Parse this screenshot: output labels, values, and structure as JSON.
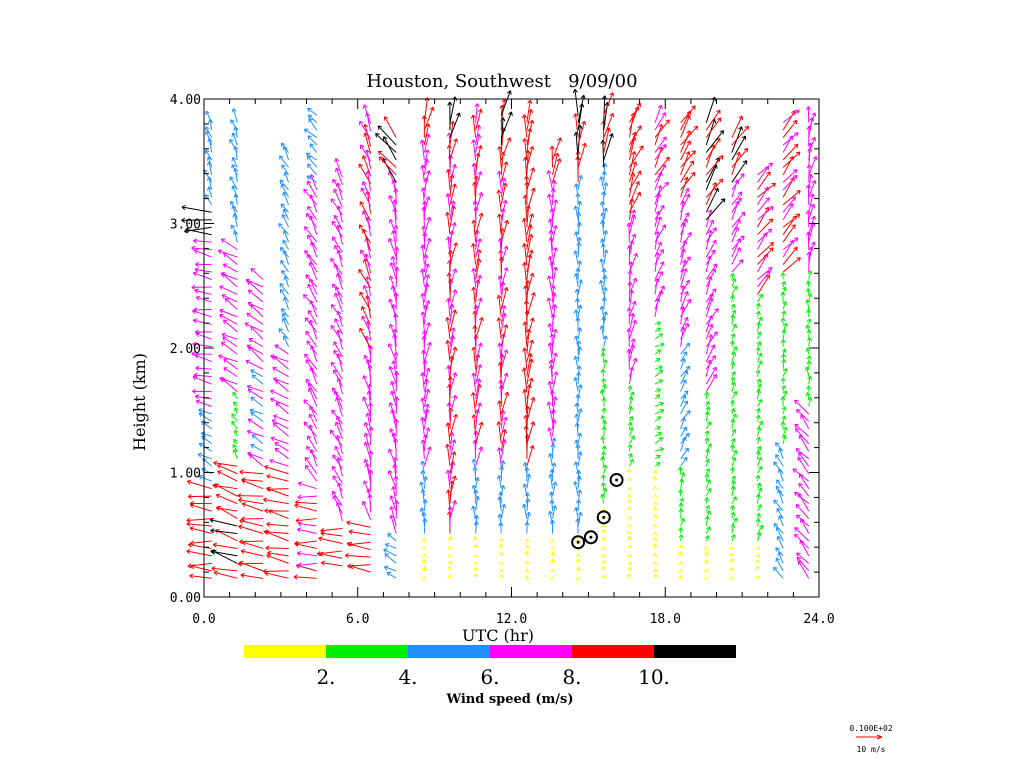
{
  "chart_data": {
    "type": "wind-profiler-barbs",
    "title": "Houston, Southwest   9/09/00",
    "xlabel": "UTC (hr)",
    "ylabel": "Height (km)",
    "xlim": [
      0,
      24
    ],
    "ylim": [
      0,
      4
    ],
    "x_ticks": [
      "0.0",
      "6.0",
      "12.0",
      "18.0",
      "24.0"
    ],
    "y_ticks": [
      "0.00",
      "1.00",
      "2.00",
      "3.00",
      "4.00"
    ],
    "colorbar": {
      "label": "Wind speed (m/s)",
      "tick_labels": [
        "2.",
        "4.",
        "6.",
        "8.",
        "10."
      ],
      "colors": [
        "#ffff00",
        "#00ee00",
        "#1e90ff",
        "#ff00ff",
        "#ff0000",
        "#000000"
      ],
      "bounds": [
        0,
        2,
        4,
        6,
        8,
        10,
        12
      ]
    },
    "reference_vector": {
      "value_label": "0.100E+02",
      "unit_label": "10 m/s",
      "color": "#ff0000"
    },
    "wind_profiles": [
      {
        "time": 0.3,
        "bottom": 0.15,
        "top": 3.85,
        "segments": [
          {
            "to": 0.9,
            "dir": 95,
            "speed": 9
          },
          {
            "to": 1.5,
            "dir": 120,
            "speed": 5
          },
          {
            "to": 2.9,
            "dir": 100,
            "speed": 7
          },
          {
            "to": 3.1,
            "dir": 90,
            "speed": 11
          },
          {
            "to": 3.85,
            "dir": 160,
            "speed": 5
          }
        ]
      },
      {
        "time": 1.3,
        "bottom": 0.15,
        "top": 3.85,
        "segments": [
          {
            "to": 0.6,
            "dir": 105,
            "speed": 10
          },
          {
            "to": 1.1,
            "dir": 110,
            "speed": 9
          },
          {
            "to": 1.6,
            "dir": 150,
            "speed": 3
          },
          {
            "to": 2.8,
            "dir": 120,
            "speed": 7
          },
          {
            "to": 3.85,
            "dir": 160,
            "speed": 5
          }
        ]
      },
      {
        "time": 2.3,
        "bottom": 0.15,
        "top": 2.6,
        "segments": [
          {
            "to": 1.0,
            "dir": 100,
            "speed": 9
          },
          {
            "to": 1.8,
            "dir": 120,
            "speed": 6
          },
          {
            "to": 2.6,
            "dir": 125,
            "speed": 7
          }
        ]
      },
      {
        "time": 3.3,
        "bottom": 0.15,
        "top": 3.6,
        "segments": [
          {
            "to": 1.0,
            "dir": 100,
            "speed": 9
          },
          {
            "to": 2.0,
            "dir": 120,
            "speed": 7
          },
          {
            "to": 3.6,
            "dir": 150,
            "speed": 5
          }
        ]
      },
      {
        "time": 4.4,
        "bottom": 0.15,
        "top": 3.9,
        "segments": [
          {
            "to": 0.9,
            "dir": 95,
            "speed": 8
          },
          {
            "to": 3.3,
            "dir": 150,
            "speed": 7
          },
          {
            "to": 3.9,
            "dir": 135,
            "speed": 5
          }
        ]
      },
      {
        "time": 5.4,
        "bottom": 0.25,
        "top": 3.4,
        "segments": [
          {
            "to": 0.6,
            "dir": 95,
            "speed": 9
          },
          {
            "to": 3.4,
            "dir": 155,
            "speed": 7
          }
        ]
      },
      {
        "time": 6.5,
        "bottom": 0.2,
        "top": 3.8,
        "segments": [
          {
            "to": 0.6,
            "dir": 95,
            "speed": 9
          },
          {
            "to": 2.0,
            "dir": 170,
            "speed": 7
          },
          {
            "to": 3.8,
            "dir": 160,
            "speed": 8
          }
        ]
      },
      {
        "time": 7.5,
        "bottom": 0.15,
        "top": 3.7,
        "segments": [
          {
            "to": 0.5,
            "dir": 120,
            "speed": 5
          },
          {
            "to": 3.3,
            "dir": 170,
            "speed": 7
          },
          {
            "to": 3.7,
            "dir": 140,
            "speed": 10
          }
        ]
      },
      {
        "time": 8.6,
        "bottom": 0.15,
        "top": 3.85,
        "segments": [
          {
            "to": 0.5,
            "dir": 180,
            "speed": 1
          },
          {
            "to": 1.0,
            "dir": 175,
            "speed": 5
          },
          {
            "to": 3.6,
            "dir": 185,
            "speed": 7
          },
          {
            "to": 3.85,
            "dir": 190,
            "speed": 9
          }
        ]
      },
      {
        "time": 9.6,
        "bottom": 0.15,
        "top": 3.85,
        "segments": [
          {
            "to": 0.5,
            "dir": 180,
            "speed": 1
          },
          {
            "to": 3.6,
            "dir": 185,
            "speed": 8
          },
          {
            "to": 3.85,
            "dir": 190,
            "speed": 10
          }
        ]
      },
      {
        "time": 10.6,
        "bottom": 0.15,
        "top": 3.85,
        "segments": [
          {
            "to": 0.5,
            "dir": 180,
            "speed": 1
          },
          {
            "to": 1.0,
            "dir": 180,
            "speed": 5
          },
          {
            "to": 3.85,
            "dir": 185,
            "speed": 8
          }
        ]
      },
      {
        "time": 11.6,
        "bottom": 0.15,
        "top": 3.9,
        "segments": [
          {
            "to": 0.5,
            "dir": 180,
            "speed": 1
          },
          {
            "to": 1.0,
            "dir": 180,
            "speed": 5
          },
          {
            "to": 3.5,
            "dir": 185,
            "speed": 8
          },
          {
            "to": 3.9,
            "dir": 190,
            "speed": 10
          }
        ]
      },
      {
        "time": 12.6,
        "bottom": 0.15,
        "top": 3.85,
        "segments": [
          {
            "to": 0.5,
            "dir": 180,
            "speed": 1
          },
          {
            "to": 1.0,
            "dir": 180,
            "speed": 5
          },
          {
            "to": 3.85,
            "dir": 185,
            "speed": 9
          }
        ]
      },
      {
        "time": 13.6,
        "bottom": 0.15,
        "top": 3.55,
        "segments": [
          {
            "to": 0.5,
            "dir": 180,
            "speed": 1
          },
          {
            "to": 1.2,
            "dir": 180,
            "speed": 5
          },
          {
            "to": 3.3,
            "dir": 180,
            "speed": 7
          },
          {
            "to": 3.55,
            "dir": 190,
            "speed": 9
          }
        ]
      },
      {
        "time": 14.6,
        "bottom": 0.15,
        "top": 3.9,
        "segments": [
          {
            "to": 0.5,
            "dir": 180,
            "speed": 1
          },
          {
            "to": 3.3,
            "dir": 180,
            "speed": 5
          },
          {
            "to": 3.9,
            "dir": 185,
            "speed": 10
          }
        ]
      },
      {
        "time": 15.6,
        "bottom": 0.15,
        "top": 3.9,
        "segments": [
          {
            "to": 0.7,
            "dir": 180,
            "speed": 1
          },
          {
            "to": 2.0,
            "dir": 180,
            "speed": 3
          },
          {
            "to": 3.4,
            "dir": 180,
            "speed": 5
          },
          {
            "to": 3.9,
            "dir": 190,
            "speed": 10
          }
        ]
      },
      {
        "time": 16.6,
        "bottom": 0.15,
        "top": 3.85,
        "segments": [
          {
            "to": 1.0,
            "dir": 180,
            "speed": 1
          },
          {
            "to": 1.7,
            "dir": 200,
            "speed": 3
          },
          {
            "to": 3.0,
            "dir": 190,
            "speed": 7
          },
          {
            "to": 3.85,
            "dir": 200,
            "speed": 9
          }
        ]
      },
      {
        "time": 17.6,
        "bottom": 0.15,
        "top": 3.85,
        "segments": [
          {
            "to": 1.0,
            "dir": 180,
            "speed": 1
          },
          {
            "to": 2.2,
            "dir": 240,
            "speed": 3
          },
          {
            "to": 3.2,
            "dir": 200,
            "speed": 7
          },
          {
            "to": 3.85,
            "dir": 210,
            "speed": 8
          }
        ]
      },
      {
        "time": 18.6,
        "bottom": 0.15,
        "top": 3.85,
        "segments": [
          {
            "to": 0.4,
            "dir": 180,
            "speed": 1
          },
          {
            "to": 1.0,
            "dir": 190,
            "speed": 3
          },
          {
            "to": 2.0,
            "dir": 210,
            "speed": 5
          },
          {
            "to": 3.2,
            "dir": 200,
            "speed": 7
          },
          {
            "to": 3.85,
            "dir": 210,
            "speed": 9
          }
        ]
      },
      {
        "time": 19.6,
        "bottom": 0.15,
        "top": 3.85,
        "segments": [
          {
            "to": 0.4,
            "dir": 180,
            "speed": 1
          },
          {
            "to": 1.6,
            "dir": 200,
            "speed": 3
          },
          {
            "to": 3.0,
            "dir": 205,
            "speed": 7
          },
          {
            "to": 3.85,
            "dir": 210,
            "speed": 10
          }
        ]
      },
      {
        "time": 20.6,
        "bottom": 0.15,
        "top": 3.7,
        "segments": [
          {
            "to": 0.4,
            "dir": 180,
            "speed": 1
          },
          {
            "to": 2.6,
            "dir": 200,
            "speed": 3
          },
          {
            "to": 3.3,
            "dir": 210,
            "speed": 7
          },
          {
            "to": 3.7,
            "dir": 210,
            "speed": 10
          }
        ]
      },
      {
        "time": 21.6,
        "bottom": 0.15,
        "top": 3.4,
        "segments": [
          {
            "to": 0.4,
            "dir": 180,
            "speed": 1
          },
          {
            "to": 2.4,
            "dir": 200,
            "speed": 3
          },
          {
            "to": 3.4,
            "dir": 220,
            "speed": 8
          }
        ]
      },
      {
        "time": 22.6,
        "bottom": 0.15,
        "top": 3.85,
        "segments": [
          {
            "to": 1.2,
            "dir": 150,
            "speed": 5
          },
          {
            "to": 2.6,
            "dir": 190,
            "speed": 3
          },
          {
            "to": 3.85,
            "dir": 220,
            "speed": 8
          }
        ]
      },
      {
        "time": 23.6,
        "bottom": 0.15,
        "top": 3.85,
        "segments": [
          {
            "to": 1.5,
            "dir": 140,
            "speed": 7
          },
          {
            "to": 2.6,
            "dir": 180,
            "speed": 3
          },
          {
            "to": 3.85,
            "dir": 190,
            "speed": 7
          }
        ]
      }
    ],
    "circle_markers": [
      {
        "time": 14.6,
        "height": 0.44
      },
      {
        "time": 15.1,
        "height": 0.48
      },
      {
        "time": 15.6,
        "height": 0.64
      },
      {
        "time": 16.1,
        "height": 0.94
      }
    ]
  }
}
